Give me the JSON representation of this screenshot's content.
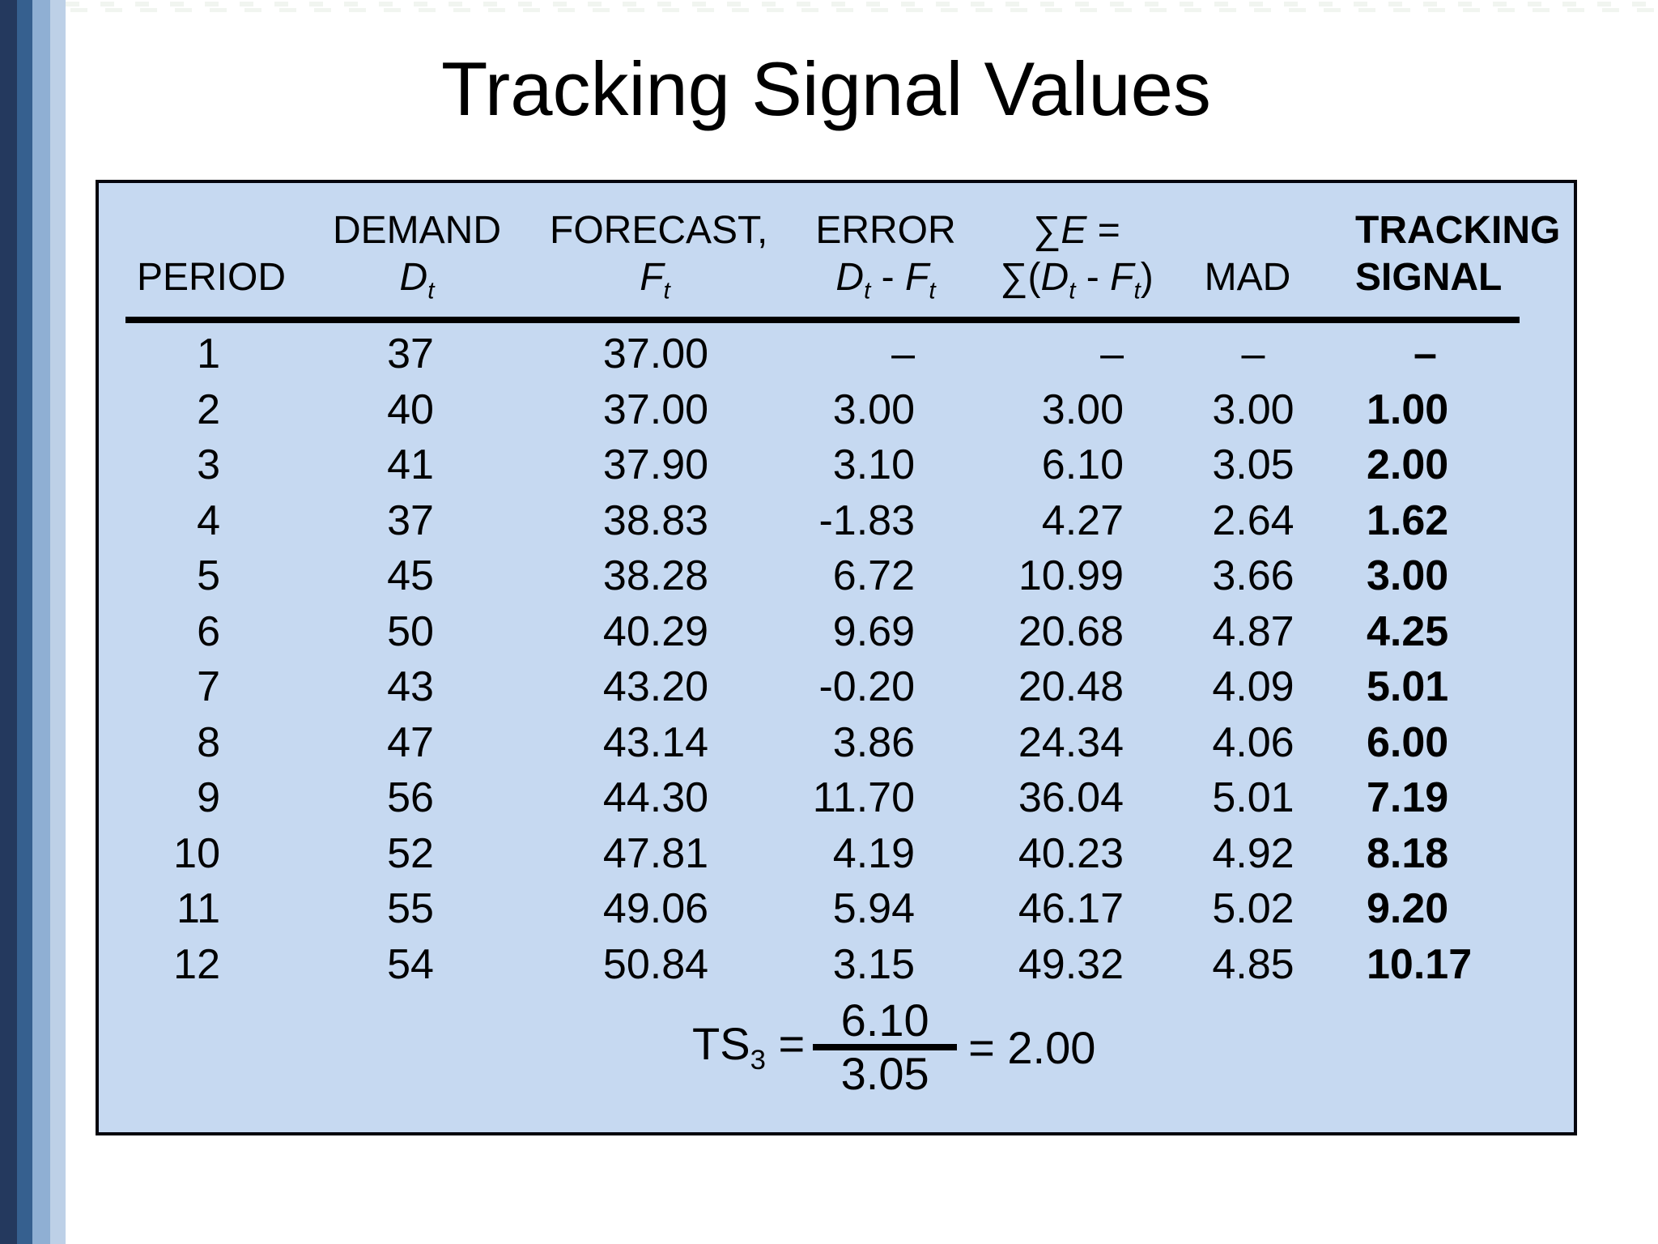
{
  "title": "Tracking Signal Values",
  "colors": {
    "table_bg": "#C6D9F1",
    "border": "#000000",
    "stripe_1": "#24395E",
    "stripe_2": "#36608F",
    "stripe_3": "#8FAFD3",
    "stripe_4": "#BDD0E7"
  },
  "table": {
    "headers": {
      "period": "PERIOD",
      "demand_label": "DEMAND",
      "demand_var": "D",
      "demand_sub": "t",
      "forecast_label": "FORECAST,",
      "forecast_var": "F",
      "forecast_sub": "t",
      "error_label": "ERROR",
      "error_var1": "D",
      "error_sub1": "t",
      "error_minus": " - ",
      "error_var2": "F",
      "error_sub2": "t",
      "sum_sigma": "∑",
      "sum_var": "E",
      "sum_eq": " =",
      "sum2_open": "∑(",
      "sum2_var1": "D",
      "sum2_sub1": "t",
      "sum2_minus": " - ",
      "sum2_var2": "F",
      "sum2_sub2": "t",
      "sum2_close": ")",
      "mad": "MAD",
      "tracking_line1": "TRACKING",
      "tracking_line2": "SIGNAL"
    },
    "rows": [
      {
        "period": "1",
        "demand": "37",
        "forecast": "37.00",
        "error": "–",
        "sum": "–",
        "mad": "–",
        "ts": "–"
      },
      {
        "period": "2",
        "demand": "40",
        "forecast": "37.00",
        "error": "3.00",
        "sum": "3.00",
        "mad": "3.00",
        "ts": "1.00"
      },
      {
        "period": "3",
        "demand": "41",
        "forecast": "37.90",
        "error": "3.10",
        "sum": "6.10",
        "mad": "3.05",
        "ts": "2.00"
      },
      {
        "period": "4",
        "demand": "37",
        "forecast": "38.83",
        "error": "-1.83",
        "sum": "4.27",
        "mad": "2.64",
        "ts": "1.62"
      },
      {
        "period": "5",
        "demand": "45",
        "forecast": "38.28",
        "error": "6.72",
        "sum": "10.99",
        "mad": "3.66",
        "ts": "3.00"
      },
      {
        "period": "6",
        "demand": "50",
        "forecast": "40.29",
        "error": "9.69",
        "sum": "20.68",
        "mad": "4.87",
        "ts": "4.25"
      },
      {
        "period": "7",
        "demand": "43",
        "forecast": "43.20",
        "error": "-0.20",
        "sum": "20.48",
        "mad": "4.09",
        "ts": "5.01"
      },
      {
        "period": "8",
        "demand": "47",
        "forecast": "43.14",
        "error": "3.86",
        "sum": "24.34",
        "mad": "4.06",
        "ts": "6.00"
      },
      {
        "period": "9",
        "demand": "56",
        "forecast": "44.30",
        "error": "11.70",
        "sum": "36.04",
        "mad": "5.01",
        "ts": "7.19"
      },
      {
        "period": "10",
        "demand": "52",
        "forecast": "47.81",
        "error": "4.19",
        "sum": "40.23",
        "mad": "4.92",
        "ts": "8.18"
      },
      {
        "period": "11",
        "demand": "55",
        "forecast": "49.06",
        "error": "5.94",
        "sum": "46.17",
        "mad": "5.02",
        "ts": "9.20"
      },
      {
        "period": "12",
        "demand": "54",
        "forecast": "50.84",
        "error": "3.15",
        "sum": "49.32",
        "mad": "4.85",
        "ts": "10.17"
      }
    ]
  },
  "formula": {
    "name": "TS",
    "subscript": "3",
    "equals": "=",
    "numerator": "6.10",
    "denominator": "3.05",
    "equals2": "=",
    "result": "2.00"
  }
}
